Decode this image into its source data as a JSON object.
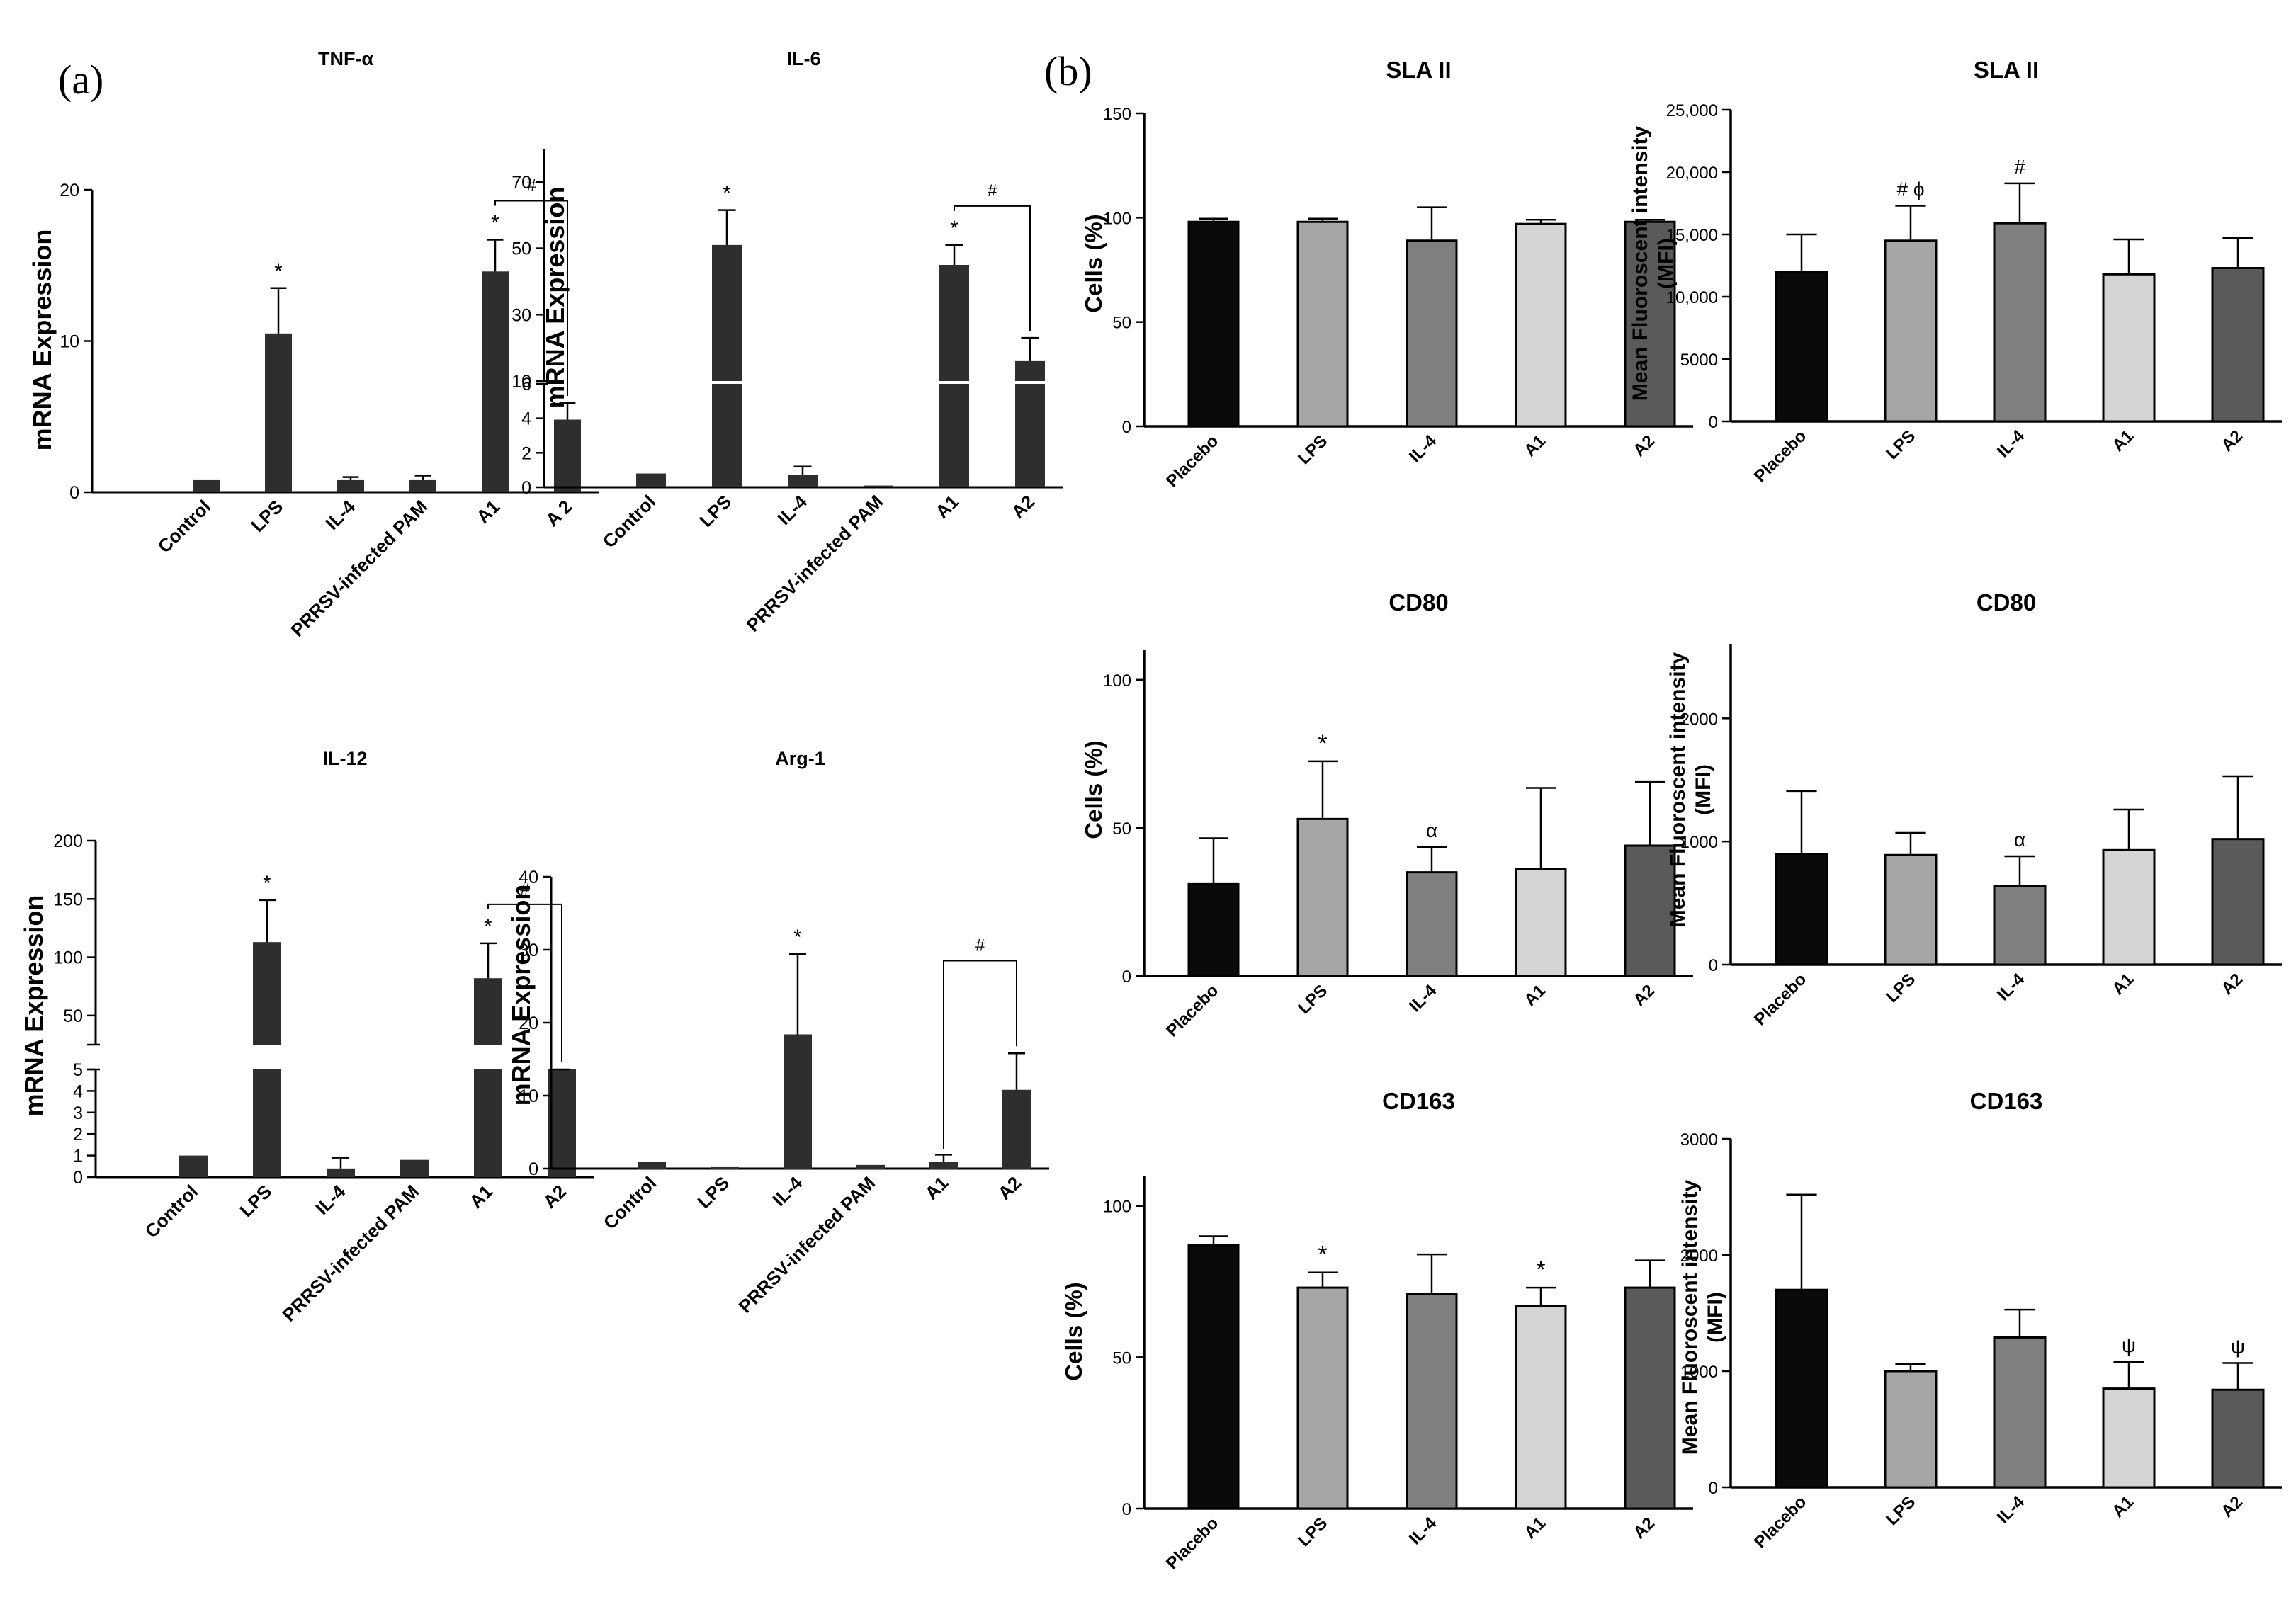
{
  "panel_labels": [
    "(a)",
    "(b)"
  ],
  "colors": {
    "dark_bar": "#2e2e2e",
    "black": "#000000",
    "placebo": "#0a0a0a",
    "lps": "#a6a6a6",
    "il4": "#7f7f7f",
    "a1": "#d4d4d4",
    "a2": "#5a5a5a"
  },
  "chart_data": [
    {
      "id": "tnf",
      "type": "bar",
      "title": "TNF-α",
      "ylabel": "mRNA Expression",
      "categories": [
        "Control",
        "LPS",
        "IL-4",
        "PRRSV-infected PAM",
        "A1",
        "A 2"
      ],
      "values": [
        0.8,
        10.5,
        0.8,
        0.8,
        14.6,
        4.8
      ],
      "errors": [
        0,
        3.0,
        0.2,
        0.3,
        2.1,
        1.1
      ],
      "ylim": [
        0,
        20
      ],
      "ticks": [
        0,
        10,
        20
      ],
      "annotations": [
        {
          "category": "LPS",
          "text": "*"
        },
        {
          "category": "A1",
          "text": "*"
        }
      ],
      "brackets": [
        {
          "from": "A1",
          "to": "A 2",
          "text": "#"
        }
      ]
    },
    {
      "id": "il6",
      "type": "bar",
      "title": "IL-6",
      "ylabel": "mRNA Expression",
      "categories": [
        "Control",
        "LPS",
        "IL-4",
        "PRRSV-infected PAM",
        "A1",
        "A2"
      ],
      "values": [
        0.8,
        51,
        0.7,
        0.1,
        45,
        16
      ],
      "errors": [
        0,
        10.5,
        0.5,
        0,
        6,
        7
      ],
      "ylim": [
        0,
        80
      ],
      "broken_axis": {
        "lower": [
          0,
          6
        ],
        "upper": [
          10,
          80
        ]
      },
      "ticks": [
        0,
        2,
        4,
        6,
        10,
        30,
        50,
        70
      ],
      "annotations": [
        {
          "category": "LPS",
          "text": "*"
        },
        {
          "category": "A1",
          "text": "*"
        }
      ],
      "brackets": [
        {
          "from": "A1",
          "to": "A2",
          "text": "#"
        }
      ]
    },
    {
      "id": "il12",
      "type": "bar",
      "title": "IL-12",
      "ylabel": "mRNA Expression",
      "categories": [
        "Control",
        "LPS",
        "IL-4",
        "PRRSV-infected PAM",
        "A1",
        "A2"
      ],
      "values": [
        1.0,
        113,
        0.4,
        0.8,
        82,
        10
      ],
      "errors": [
        0,
        36,
        0.5,
        0,
        30,
        12
      ],
      "ylim": [
        0,
        200
      ],
      "broken_axis": {
        "lower": [
          0,
          5
        ],
        "upper": [
          25,
          200
        ]
      },
      "ticks": [
        0,
        1,
        2,
        3,
        4,
        5,
        50,
        100,
        150,
        200
      ],
      "annotations": [
        {
          "category": "LPS",
          "text": "*"
        },
        {
          "category": "A1",
          "text": "*"
        }
      ],
      "brackets": [
        {
          "from": "A1",
          "to": "A2",
          "text": "#"
        }
      ]
    },
    {
      "id": "arg1",
      "type": "bar",
      "title": "Arg-1",
      "ylabel": "mRNA Expression",
      "categories": [
        "Control",
        "LPS",
        "IL-4",
        "PRRSV-infected PAM",
        "A1",
        "A2"
      ],
      "values": [
        0.9,
        0.2,
        18.4,
        0.5,
        0.9,
        10.8
      ],
      "errors": [
        0,
        0,
        11,
        0,
        1.0,
        5
      ],
      "ylim": [
        0,
        40
      ],
      "ticks": [
        0,
        10,
        20,
        30,
        40
      ],
      "annotations": [
        {
          "category": "IL-4",
          "text": "*"
        }
      ],
      "brackets": [
        {
          "from": "A1",
          "to": "A2",
          "text": "#"
        }
      ]
    },
    {
      "id": "sla_pct",
      "type": "bar",
      "title": "SLA II",
      "ylabel": "Cells (%)",
      "categories": [
        "Placebo",
        "LPS",
        "IL-4",
        "A1",
        "A2"
      ],
      "values": [
        98,
        98,
        89,
        97,
        98
      ],
      "errors": [
        1.5,
        1.5,
        16,
        2,
        1
      ],
      "ylim": [
        0,
        150
      ],
      "ticks": [
        0,
        50,
        100,
        150
      ],
      "annotations": []
    },
    {
      "id": "sla_mfi",
      "type": "bar",
      "title": "SLA II",
      "ylabel": "Mean Fluoroscent intensity (MFI)",
      "categories": [
        "Placebo",
        "LPS",
        "IL-4",
        "A1",
        "A2"
      ],
      "values": [
        12000,
        14500,
        15900,
        11800,
        12300
      ],
      "errors": [
        3000,
        2800,
        3200,
        2800,
        2400
      ],
      "ylim": [
        0,
        25000
      ],
      "ticks": [
        0,
        5000,
        10000,
        15000,
        20000,
        25000
      ],
      "tick_labels": [
        "0",
        "5000",
        "10,000",
        "15,000",
        "20,000",
        "25,000"
      ],
      "annotations": [
        {
          "category": "LPS",
          "text": "# ϕ"
        },
        {
          "category": "IL-4",
          "text": "#"
        }
      ]
    },
    {
      "id": "cd80_pct",
      "type": "bar",
      "title": "CD80",
      "ylabel": "Cells (%)",
      "categories": [
        "Placebo",
        "LPS",
        "IL-4",
        "A1",
        "A2"
      ],
      "values": [
        31,
        53,
        35,
        36,
        44
      ],
      "errors": [
        15.5,
        19.5,
        8.5,
        27.5,
        21.5
      ],
      "ylim": [
        0,
        110
      ],
      "ticks": [
        0,
        50,
        100
      ],
      "annotations": [
        {
          "category": "LPS",
          "text": "*"
        },
        {
          "category": "IL-4",
          "text": "α"
        }
      ]
    },
    {
      "id": "cd80_mfi",
      "type": "bar",
      "title": "CD80",
      "ylabel": "Mean Fluoroscent intensity (MFI)",
      "categories": [
        "Placebo",
        "LPS",
        "IL-4",
        "A1",
        "A2"
      ],
      "values": [
        900,
        890,
        640,
        930,
        1020
      ],
      "errors": [
        510,
        180,
        240,
        330,
        510
      ],
      "ylim": [
        0,
        2600
      ],
      "ticks": [
        0,
        1000,
        2000
      ],
      "annotations": [
        {
          "category": "IL-4",
          "text": "α"
        }
      ]
    },
    {
      "id": "cd163_pct",
      "type": "bar",
      "title": "CD163",
      "ylabel": "Cells (%)",
      "categories": [
        "Placebo",
        "LPS",
        "IL-4",
        "A1",
        "A2"
      ],
      "values": [
        87,
        73,
        71,
        67,
        73
      ],
      "errors": [
        3,
        5,
        13,
        6,
        9
      ],
      "ylim": [
        0,
        110
      ],
      "ticks": [
        0,
        50,
        100
      ],
      "annotations": [
        {
          "category": "LPS",
          "text": "*"
        },
        {
          "category": "A1",
          "text": "*"
        }
      ]
    },
    {
      "id": "cd163_mfi",
      "type": "bar",
      "title": "CD163",
      "ylabel": "Mean Fluoroscent intensity (MFI)",
      "categories": [
        "Placebo",
        "LPS",
        "IL-4",
        "A1",
        "A2"
      ],
      "values": [
        1700,
        1000,
        1290,
        850,
        840
      ],
      "errors": [
        820,
        60,
        240,
        230,
        230
      ],
      "ylim": [
        0,
        3000
      ],
      "ticks": [
        0,
        1000,
        2000,
        3000
      ],
      "annotations": [
        {
          "category": "A1",
          "text": "ψ"
        },
        {
          "category": "A2",
          "text": "ψ"
        }
      ]
    }
  ]
}
